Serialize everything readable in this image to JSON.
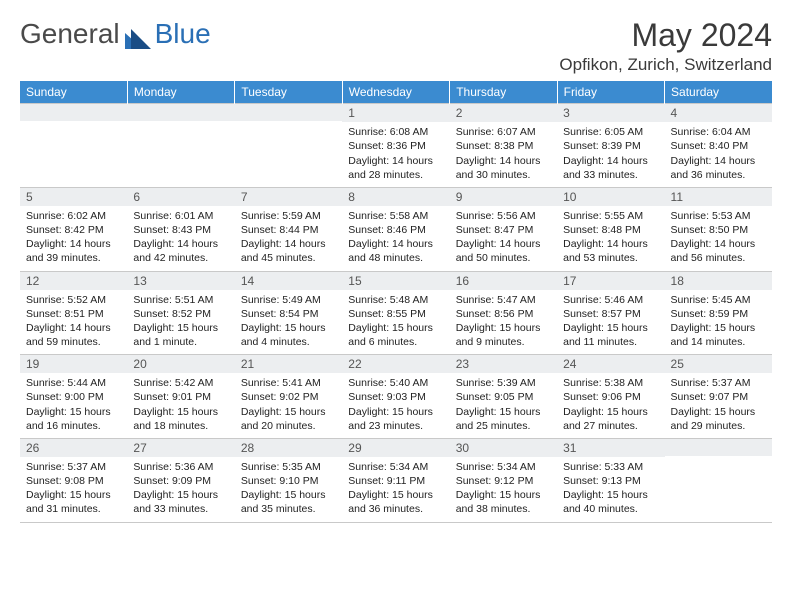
{
  "logo": {
    "word1": "General",
    "word2": "Blue"
  },
  "title": "May 2024",
  "location": "Opfikon, Zurich, Switzerland",
  "headers": [
    "Sunday",
    "Monday",
    "Tuesday",
    "Wednesday",
    "Thursday",
    "Friday",
    "Saturday"
  ],
  "header_bg": "#3b8bd0",
  "daynum_bg": "#eceef0",
  "weeks": [
    [
      {
        "n": "",
        "sr": "",
        "ss": "",
        "dl1": "",
        "dl2": ""
      },
      {
        "n": "",
        "sr": "",
        "ss": "",
        "dl1": "",
        "dl2": ""
      },
      {
        "n": "",
        "sr": "",
        "ss": "",
        "dl1": "",
        "dl2": ""
      },
      {
        "n": "1",
        "sr": "Sunrise: 6:08 AM",
        "ss": "Sunset: 8:36 PM",
        "dl1": "Daylight: 14 hours",
        "dl2": "and 28 minutes."
      },
      {
        "n": "2",
        "sr": "Sunrise: 6:07 AM",
        "ss": "Sunset: 8:38 PM",
        "dl1": "Daylight: 14 hours",
        "dl2": "and 30 minutes."
      },
      {
        "n": "3",
        "sr": "Sunrise: 6:05 AM",
        "ss": "Sunset: 8:39 PM",
        "dl1": "Daylight: 14 hours",
        "dl2": "and 33 minutes."
      },
      {
        "n": "4",
        "sr": "Sunrise: 6:04 AM",
        "ss": "Sunset: 8:40 PM",
        "dl1": "Daylight: 14 hours",
        "dl2": "and 36 minutes."
      }
    ],
    [
      {
        "n": "5",
        "sr": "Sunrise: 6:02 AM",
        "ss": "Sunset: 8:42 PM",
        "dl1": "Daylight: 14 hours",
        "dl2": "and 39 minutes."
      },
      {
        "n": "6",
        "sr": "Sunrise: 6:01 AM",
        "ss": "Sunset: 8:43 PM",
        "dl1": "Daylight: 14 hours",
        "dl2": "and 42 minutes."
      },
      {
        "n": "7",
        "sr": "Sunrise: 5:59 AM",
        "ss": "Sunset: 8:44 PM",
        "dl1": "Daylight: 14 hours",
        "dl2": "and 45 minutes."
      },
      {
        "n": "8",
        "sr": "Sunrise: 5:58 AM",
        "ss": "Sunset: 8:46 PM",
        "dl1": "Daylight: 14 hours",
        "dl2": "and 48 minutes."
      },
      {
        "n": "9",
        "sr": "Sunrise: 5:56 AM",
        "ss": "Sunset: 8:47 PM",
        "dl1": "Daylight: 14 hours",
        "dl2": "and 50 minutes."
      },
      {
        "n": "10",
        "sr": "Sunrise: 5:55 AM",
        "ss": "Sunset: 8:48 PM",
        "dl1": "Daylight: 14 hours",
        "dl2": "and 53 minutes."
      },
      {
        "n": "11",
        "sr": "Sunrise: 5:53 AM",
        "ss": "Sunset: 8:50 PM",
        "dl1": "Daylight: 14 hours",
        "dl2": "and 56 minutes."
      }
    ],
    [
      {
        "n": "12",
        "sr": "Sunrise: 5:52 AM",
        "ss": "Sunset: 8:51 PM",
        "dl1": "Daylight: 14 hours",
        "dl2": "and 59 minutes."
      },
      {
        "n": "13",
        "sr": "Sunrise: 5:51 AM",
        "ss": "Sunset: 8:52 PM",
        "dl1": "Daylight: 15 hours",
        "dl2": "and 1 minute."
      },
      {
        "n": "14",
        "sr": "Sunrise: 5:49 AM",
        "ss": "Sunset: 8:54 PM",
        "dl1": "Daylight: 15 hours",
        "dl2": "and 4 minutes."
      },
      {
        "n": "15",
        "sr": "Sunrise: 5:48 AM",
        "ss": "Sunset: 8:55 PM",
        "dl1": "Daylight: 15 hours",
        "dl2": "and 6 minutes."
      },
      {
        "n": "16",
        "sr": "Sunrise: 5:47 AM",
        "ss": "Sunset: 8:56 PM",
        "dl1": "Daylight: 15 hours",
        "dl2": "and 9 minutes."
      },
      {
        "n": "17",
        "sr": "Sunrise: 5:46 AM",
        "ss": "Sunset: 8:57 PM",
        "dl1": "Daylight: 15 hours",
        "dl2": "and 11 minutes."
      },
      {
        "n": "18",
        "sr": "Sunrise: 5:45 AM",
        "ss": "Sunset: 8:59 PM",
        "dl1": "Daylight: 15 hours",
        "dl2": "and 14 minutes."
      }
    ],
    [
      {
        "n": "19",
        "sr": "Sunrise: 5:44 AM",
        "ss": "Sunset: 9:00 PM",
        "dl1": "Daylight: 15 hours",
        "dl2": "and 16 minutes."
      },
      {
        "n": "20",
        "sr": "Sunrise: 5:42 AM",
        "ss": "Sunset: 9:01 PM",
        "dl1": "Daylight: 15 hours",
        "dl2": "and 18 minutes."
      },
      {
        "n": "21",
        "sr": "Sunrise: 5:41 AM",
        "ss": "Sunset: 9:02 PM",
        "dl1": "Daylight: 15 hours",
        "dl2": "and 20 minutes."
      },
      {
        "n": "22",
        "sr": "Sunrise: 5:40 AM",
        "ss": "Sunset: 9:03 PM",
        "dl1": "Daylight: 15 hours",
        "dl2": "and 23 minutes."
      },
      {
        "n": "23",
        "sr": "Sunrise: 5:39 AM",
        "ss": "Sunset: 9:05 PM",
        "dl1": "Daylight: 15 hours",
        "dl2": "and 25 minutes."
      },
      {
        "n": "24",
        "sr": "Sunrise: 5:38 AM",
        "ss": "Sunset: 9:06 PM",
        "dl1": "Daylight: 15 hours",
        "dl2": "and 27 minutes."
      },
      {
        "n": "25",
        "sr": "Sunrise: 5:37 AM",
        "ss": "Sunset: 9:07 PM",
        "dl1": "Daylight: 15 hours",
        "dl2": "and 29 minutes."
      }
    ],
    [
      {
        "n": "26",
        "sr": "Sunrise: 5:37 AM",
        "ss": "Sunset: 9:08 PM",
        "dl1": "Daylight: 15 hours",
        "dl2": "and 31 minutes."
      },
      {
        "n": "27",
        "sr": "Sunrise: 5:36 AM",
        "ss": "Sunset: 9:09 PM",
        "dl1": "Daylight: 15 hours",
        "dl2": "and 33 minutes."
      },
      {
        "n": "28",
        "sr": "Sunrise: 5:35 AM",
        "ss": "Sunset: 9:10 PM",
        "dl1": "Daylight: 15 hours",
        "dl2": "and 35 minutes."
      },
      {
        "n": "29",
        "sr": "Sunrise: 5:34 AM",
        "ss": "Sunset: 9:11 PM",
        "dl1": "Daylight: 15 hours",
        "dl2": "and 36 minutes."
      },
      {
        "n": "30",
        "sr": "Sunrise: 5:34 AM",
        "ss": "Sunset: 9:12 PM",
        "dl1": "Daylight: 15 hours",
        "dl2": "and 38 minutes."
      },
      {
        "n": "31",
        "sr": "Sunrise: 5:33 AM",
        "ss": "Sunset: 9:13 PM",
        "dl1": "Daylight: 15 hours",
        "dl2": "and 40 minutes."
      },
      {
        "n": "",
        "sr": "",
        "ss": "",
        "dl1": "",
        "dl2": ""
      }
    ]
  ]
}
